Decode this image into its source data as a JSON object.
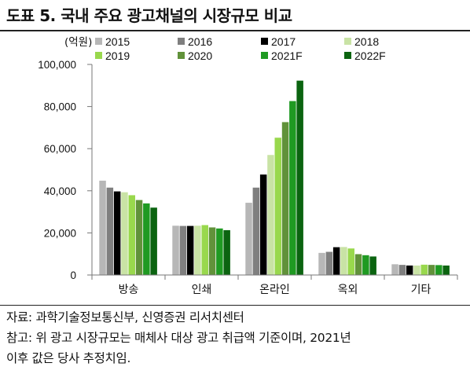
{
  "header": {
    "title": "도표 5. 국내 주요 광고채널의 시장규모 비교"
  },
  "footer": {
    "source": "자료: 과학기술정보통신부, 신영증권 리서치센터",
    "note_line1": "참고: 위 광고 시장규모는 매체사 대상 광고 취급액 기준이며, 2021년",
    "note_line2": "이후 값은 당사 추정치임."
  },
  "chart_data": {
    "type": "bar",
    "unit_label": "(억원)",
    "categories": [
      "방송",
      "인쇄",
      "온라인",
      "옥외",
      "기타"
    ],
    "ylim": [
      0,
      100000
    ],
    "yticks": [
      "0",
      "20,000",
      "40,000",
      "60,000",
      "80,000",
      "100,000"
    ],
    "legend_placement": "top",
    "series": [
      {
        "name": "2015",
        "color": "#b7b7b7",
        "values": [
          44800,
          23400,
          34300,
          10500,
          5100
        ]
      },
      {
        "name": "2016",
        "color": "#7f7f7f",
        "values": [
          41500,
          23300,
          41500,
          11000,
          4800
        ]
      },
      {
        "name": "2017",
        "color": "#000000",
        "values": [
          39700,
          23300,
          47700,
          13200,
          4500
        ]
      },
      {
        "name": "2018",
        "color": "#c9e3a5",
        "values": [
          39300,
          23400,
          57000,
          13300,
          4500
        ]
      },
      {
        "name": "2019",
        "color": "#99d84d",
        "values": [
          37900,
          23700,
          65200,
          12600,
          4900
        ]
      },
      {
        "name": "2020",
        "color": "#61923a",
        "values": [
          35600,
          22600,
          72600,
          9900,
          4800
        ]
      },
      {
        "name": "2021F",
        "color": "#1f9a22",
        "values": [
          34000,
          22100,
          82600,
          9400,
          4700
        ]
      },
      {
        "name": "2022F",
        "color": "#0b6410",
        "values": [
          32000,
          21300,
          92300,
          8800,
          4500
        ]
      }
    ]
  }
}
